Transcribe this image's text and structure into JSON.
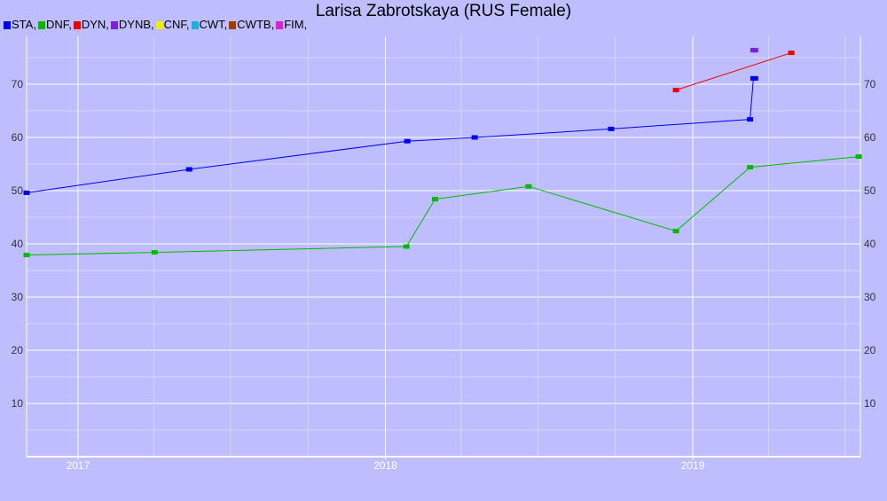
{
  "chart_data": {
    "type": "line",
    "title": "Larisa Zabrotskaya (RUS Female)",
    "xlabel": "",
    "ylabel": "",
    "grid": true,
    "ylim": [
      0,
      79
    ],
    "x_range": [
      "2016-11-01",
      "2019-07-19"
    ],
    "x_ticks": [
      "2017",
      "2018",
      "2019"
    ],
    "y_ticks": [
      10,
      20,
      30,
      40,
      50,
      60,
      70
    ],
    "legend": [
      {
        "name": "STA,",
        "color": "#0000ee"
      },
      {
        "name": "DNF,",
        "color": "#00bb00"
      },
      {
        "name": "DYN,",
        "color": "#ee0000"
      },
      {
        "name": "DYNB,",
        "color": "#7a1fe0"
      },
      {
        "name": "CNF,",
        "color": "#eeee00"
      },
      {
        "name": "CWT,",
        "color": "#1ab0d8"
      },
      {
        "name": "CWTB,",
        "color": "#a03c00"
      },
      {
        "name": "FIM,",
        "color": "#e020d0"
      }
    ],
    "series": [
      {
        "name": "STA,",
        "color": "#0000ee",
        "points": [
          {
            "x": "2016-11-01",
            "y": 49.6
          },
          {
            "x": "2017-05-13",
            "y": 54.0
          },
          {
            "x": "2018-01-27",
            "y": 59.3
          },
          {
            "x": "2018-04-17",
            "y": 60.0
          },
          {
            "x": "2018-09-26",
            "y": 61.6
          },
          {
            "x": "2019-03-10",
            "y": 63.4
          },
          {
            "x": "2019-03-14",
            "y": 71.1
          },
          {
            "x": "2019-03-16",
            "y": 71.1
          }
        ]
      },
      {
        "name": "DNF,",
        "color": "#00bb00",
        "points": [
          {
            "x": "2016-11-01",
            "y": 37.9
          },
          {
            "x": "2017-04-02",
            "y": 38.4
          },
          {
            "x": "2018-01-26",
            "y": 39.5
          },
          {
            "x": "2018-03-01",
            "y": 48.4
          },
          {
            "x": "2018-06-20",
            "y": 50.8
          },
          {
            "x": "2018-12-12",
            "y": 42.4
          },
          {
            "x": "2019-03-10",
            "y": 54.4
          },
          {
            "x": "2019-07-17",
            "y": 56.4
          }
        ]
      },
      {
        "name": "DYN,",
        "color": "#ee0000",
        "points": [
          {
            "x": "2018-12-12",
            "y": 68.9
          },
          {
            "x": "2019-04-28",
            "y": 75.9
          }
        ]
      },
      {
        "name": "DYNB,",
        "color": "#7a1fe0",
        "points": [
          {
            "x": "2019-03-14",
            "y": 76.4
          },
          {
            "x": "2019-03-16",
            "y": 76.4
          }
        ]
      }
    ]
  }
}
